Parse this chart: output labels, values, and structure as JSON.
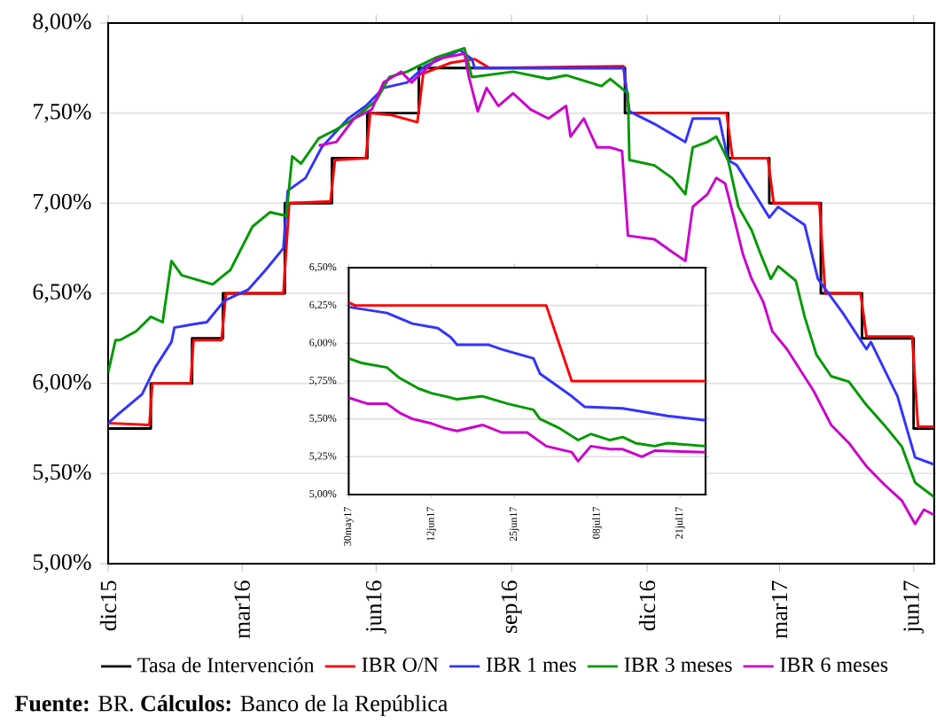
{
  "chart_data": [
    {
      "type": "line",
      "xlim": [
        "2015-12-31",
        "2017-07-14"
      ],
      "ylim": [
        5.0,
        8.0
      ],
      "xticks": [
        {
          "value": "2015-12-31",
          "label": "dic15"
        },
        {
          "value": "2016-03-31",
          "label": "mar16"
        },
        {
          "value": "2016-06-30",
          "label": "jun16"
        },
        {
          "value": "2016-09-30",
          "label": "sep16"
        },
        {
          "value": "2016-12-31",
          "label": "dic16"
        },
        {
          "value": "2017-03-31",
          "label": "mar17"
        },
        {
          "value": "2017-06-30",
          "label": "jun17"
        }
      ],
      "yticks": [
        {
          "value": 5.0,
          "label": "5,00%"
        },
        {
          "value": 5.5,
          "label": "5,50%"
        },
        {
          "value": 6.0,
          "label": "6,00%"
        },
        {
          "value": 6.5,
          "label": "6,50%"
        },
        {
          "value": 7.0,
          "label": "7,00%"
        },
        {
          "value": 7.5,
          "label": "7,50%"
        },
        {
          "value": 8.0,
          "label": "8,00%"
        }
      ],
      "grid": "y",
      "legend": "bottom",
      "annotations": [
        "**Fuente:** BR. **Cálculos:** Banco de la República"
      ],
      "series": [
        {
          "name": "Tasa de Intervención",
          "type": "step",
          "color": "#000000",
          "x": [
            "2015-12-31",
            "2016-01-29",
            "2016-02-26",
            "2016-03-18",
            "2016-04-29",
            "2016-05-31",
            "2016-06-24",
            "2016-07-29",
            "2016-12-16",
            "2017-02-24",
            "2017-03-24",
            "2017-04-28",
            "2017-05-26",
            "2017-06-30",
            "2017-07-14"
          ],
          "values": [
            5.75,
            6.0,
            6.25,
            6.5,
            7.0,
            7.25,
            7.5,
            7.75,
            7.5,
            7.25,
            7.0,
            6.5,
            6.25,
            5.75,
            5.75
          ]
        },
        {
          "name": "IBR O/N",
          "color": "#ff0000",
          "x": [
            "2015-12-31",
            "2016-01-28",
            "2016-01-30",
            "2016-02-25",
            "2016-02-27",
            "2016-03-17",
            "2016-03-20",
            "2016-04-28",
            "2016-05-02",
            "2016-05-30",
            "2016-06-02",
            "2016-06-23",
            "2016-06-26",
            "2016-07-10",
            "2016-07-28",
            "2016-08-01",
            "2016-08-20",
            "2016-09-05",
            "2016-09-15",
            "2016-12-15",
            "2016-12-19",
            "2017-02-23",
            "2017-02-27",
            "2017-03-23",
            "2017-03-27",
            "2017-04-27",
            "2017-05-01",
            "2017-05-25",
            "2017-05-29",
            "2017-06-29",
            "2017-07-03",
            "2017-07-14"
          ],
          "values": [
            5.78,
            5.77,
            6.0,
            6.0,
            6.24,
            6.24,
            6.5,
            6.5,
            7.0,
            7.01,
            7.24,
            7.25,
            7.5,
            7.49,
            7.45,
            7.72,
            7.78,
            7.8,
            7.75,
            7.76,
            7.5,
            7.5,
            7.25,
            7.25,
            7.0,
            7.0,
            6.5,
            6.5,
            6.26,
            6.26,
            5.76,
            5.76
          ]
        },
        {
          "name": "IBR 1 mes",
          "color": "#3333ff",
          "x": [
            "2015-12-31",
            "2016-01-07",
            "2016-01-23",
            "2016-02-01",
            "2016-02-12",
            "2016-02-14",
            "2016-02-28",
            "2016-03-07",
            "2016-03-19",
            "2016-04-04",
            "2016-04-16",
            "2016-04-28",
            "2016-05-01",
            "2016-05-13",
            "2016-05-24",
            "2016-06-11",
            "2016-06-23",
            "2016-07-05",
            "2016-07-21",
            "2016-08-02",
            "2016-08-26",
            "2016-09-03",
            "2016-09-05",
            "2016-09-19",
            "2016-12-15",
            "2016-12-19",
            "2017-01-05",
            "2017-01-26",
            "2017-01-31",
            "2017-02-18",
            "2017-02-24",
            "2017-03-02",
            "2017-03-18",
            "2017-03-24",
            "2017-03-30",
            "2017-04-17",
            "2017-04-26",
            "2017-05-13",
            "2017-05-29",
            "2017-06-01",
            "2017-06-19",
            "2017-07-01",
            "2017-07-14"
          ],
          "values": [
            5.78,
            5.83,
            5.94,
            6.09,
            6.23,
            6.31,
            6.33,
            6.34,
            6.46,
            6.52,
            6.63,
            6.75,
            7.07,
            7.14,
            7.31,
            7.47,
            7.54,
            7.64,
            7.67,
            7.76,
            7.85,
            7.8,
            7.75,
            7.75,
            7.75,
            7.51,
            7.44,
            7.34,
            7.47,
            7.47,
            7.24,
            7.21,
            7.0,
            6.92,
            6.98,
            6.88,
            6.58,
            6.39,
            6.19,
            6.23,
            5.93,
            5.59,
            5.55
          ]
        },
        {
          "name": "IBR 3 meses",
          "color": "#009900",
          "x": [
            "2015-12-31",
            "2016-01-05",
            "2016-01-08",
            "2016-01-19",
            "2016-01-29",
            "2016-02-06",
            "2016-02-12",
            "2016-02-19",
            "2016-03-11",
            "2016-03-23",
            "2016-04-07",
            "2016-04-19",
            "2016-04-30",
            "2016-05-04",
            "2016-05-10",
            "2016-05-22",
            "2016-06-03",
            "2016-06-15",
            "2016-06-30",
            "2016-07-09",
            "2016-07-21",
            "2016-08-10",
            "2016-08-29",
            "2016-09-03",
            "2016-10-01",
            "2016-10-25",
            "2016-11-06",
            "2016-11-30",
            "2016-12-06",
            "2016-12-18",
            "2016-12-19",
            "2017-01-05",
            "2017-01-17",
            "2017-01-26",
            "2017-01-31",
            "2017-02-10",
            "2017-02-16",
            "2017-02-24",
            "2017-03-03",
            "2017-03-12",
            "2017-03-18",
            "2017-03-25",
            "2017-03-30",
            "2017-04-11",
            "2017-04-17",
            "2017-04-25",
            "2017-05-05",
            "2017-05-17",
            "2017-05-29",
            "2017-06-10",
            "2017-06-22",
            "2017-07-01",
            "2017-07-14"
          ],
          "values": [
            6.06,
            6.24,
            6.24,
            6.29,
            6.37,
            6.34,
            6.68,
            6.6,
            6.55,
            6.63,
            6.87,
            6.95,
            6.93,
            7.26,
            7.22,
            7.36,
            7.41,
            7.47,
            7.57,
            7.7,
            7.73,
            7.81,
            7.86,
            7.7,
            7.73,
            7.69,
            7.71,
            7.65,
            7.69,
            7.61,
            7.24,
            7.21,
            7.14,
            7.05,
            7.31,
            7.34,
            7.37,
            7.24,
            6.98,
            6.85,
            6.72,
            6.58,
            6.65,
            6.57,
            6.37,
            6.16,
            6.04,
            6.01,
            5.88,
            5.77,
            5.65,
            5.45,
            5.37
          ]
        },
        {
          "name": "IBR 6 meses",
          "color": "#cc00cc",
          "x": [
            "2016-05-22",
            "2016-06-03",
            "2016-06-15",
            "2016-06-27",
            "2016-07-05",
            "2016-07-17",
            "2016-07-24",
            "2016-08-10",
            "2016-08-29",
            "2016-09-01",
            "2016-09-07",
            "2016-09-13",
            "2016-09-21",
            "2016-10-01",
            "2016-10-13",
            "2016-10-25",
            "2016-11-06",
            "2016-11-09",
            "2016-11-18",
            "2016-11-27",
            "2016-12-06",
            "2016-12-14",
            "2016-12-18",
            "2017-01-05",
            "2017-01-17",
            "2017-01-26",
            "2017-01-31",
            "2017-02-10",
            "2017-02-16",
            "2017-02-22",
            "2017-02-28",
            "2017-03-06",
            "2017-03-12",
            "2017-03-20",
            "2017-03-26",
            "2017-04-05",
            "2017-04-23",
            "2017-05-05",
            "2017-05-17",
            "2017-05-29",
            "2017-06-10",
            "2017-06-22",
            "2017-07-01",
            "2017-07-07",
            "2017-07-14"
          ],
          "values": [
            7.32,
            7.34,
            7.47,
            7.52,
            7.67,
            7.73,
            7.67,
            7.8,
            7.83,
            7.7,
            7.51,
            7.64,
            7.54,
            7.61,
            7.52,
            7.47,
            7.54,
            7.37,
            7.47,
            7.31,
            7.31,
            7.29,
            6.82,
            6.8,
            6.73,
            6.68,
            6.98,
            7.05,
            7.14,
            7.11,
            6.92,
            6.72,
            6.58,
            6.45,
            6.29,
            6.19,
            5.96,
            5.77,
            5.67,
            5.54,
            5.44,
            5.35,
            5.22,
            5.3,
            5.27
          ]
        }
      ]
    },
    {
      "type": "line",
      "xlim": [
        "2017-05-30",
        "2017-07-25"
      ],
      "ylim": [
        5.0,
        6.5
      ],
      "xticks": [
        {
          "value": "2017-05-30",
          "label": "30may17"
        },
        {
          "value": "2017-06-12",
          "label": "12jun17"
        },
        {
          "value": "2017-06-25",
          "label": "25jun17"
        },
        {
          "value": "2017-07-08",
          "label": "08jul17"
        },
        {
          "value": "2017-07-21",
          "label": "21jul17"
        }
      ],
      "yticks": [
        {
          "value": 5.0,
          "label": "5,00%"
        },
        {
          "value": 5.25,
          "label": "5,25%"
        },
        {
          "value": 5.5,
          "label": "5,50%"
        },
        {
          "value": 5.75,
          "label": "5,75%"
        },
        {
          "value": 6.0,
          "label": "6,00%"
        },
        {
          "value": 6.25,
          "label": "6,25%"
        },
        {
          "value": 6.5,
          "label": "6,50%"
        }
      ],
      "grid": "y",
      "series": [
        {
          "color": "#ff0000",
          "x": [
            "2017-05-30",
            "2017-05-31",
            "2017-06-30",
            "2017-07-04",
            "2017-07-25"
          ],
          "values": [
            6.27,
            6.25,
            6.25,
            5.75,
            5.75
          ]
        },
        {
          "color": "#3333ff",
          "x": [
            "2017-05-30",
            "2017-06-05",
            "2017-06-09",
            "2017-06-13",
            "2017-06-15",
            "2017-06-16",
            "2017-06-21",
            "2017-06-23",
            "2017-06-28",
            "2017-06-29",
            "2017-07-04",
            "2017-07-06",
            "2017-07-12",
            "2017-07-19",
            "2017-07-25"
          ],
          "values": [
            6.24,
            6.2,
            6.13,
            6.1,
            6.04,
            5.99,
            5.99,
            5.96,
            5.9,
            5.8,
            5.65,
            5.58,
            5.57,
            5.52,
            5.49
          ]
        },
        {
          "color": "#009900",
          "x": [
            "2017-05-30",
            "2017-06-01",
            "2017-06-05",
            "2017-06-07",
            "2017-06-10",
            "2017-06-12",
            "2017-06-16",
            "2017-06-20",
            "2017-06-24",
            "2017-06-28",
            "2017-06-29",
            "2017-07-02",
            "2017-07-05",
            "2017-07-07",
            "2017-07-10",
            "2017-07-12",
            "2017-07-14",
            "2017-07-17",
            "2017-07-19",
            "2017-07-25"
          ],
          "values": [
            5.9,
            5.87,
            5.84,
            5.77,
            5.7,
            5.67,
            5.63,
            5.65,
            5.6,
            5.56,
            5.5,
            5.44,
            5.36,
            5.4,
            5.36,
            5.38,
            5.34,
            5.32,
            5.34,
            5.32
          ]
        },
        {
          "color": "#cc00cc",
          "x": [
            "2017-05-30",
            "2017-06-02",
            "2017-06-05",
            "2017-06-07",
            "2017-06-09",
            "2017-06-12",
            "2017-06-14",
            "2017-06-16",
            "2017-06-20",
            "2017-06-23",
            "2017-06-27",
            "2017-06-30",
            "2017-07-04",
            "2017-07-05",
            "2017-07-07",
            "2017-07-10",
            "2017-07-12",
            "2017-07-15",
            "2017-07-17",
            "2017-07-25"
          ],
          "values": [
            5.64,
            5.6,
            5.6,
            5.54,
            5.5,
            5.47,
            5.44,
            5.42,
            5.46,
            5.41,
            5.41,
            5.32,
            5.28,
            5.22,
            5.32,
            5.3,
            5.3,
            5.25,
            5.29,
            5.28
          ]
        }
      ]
    }
  ]
}
